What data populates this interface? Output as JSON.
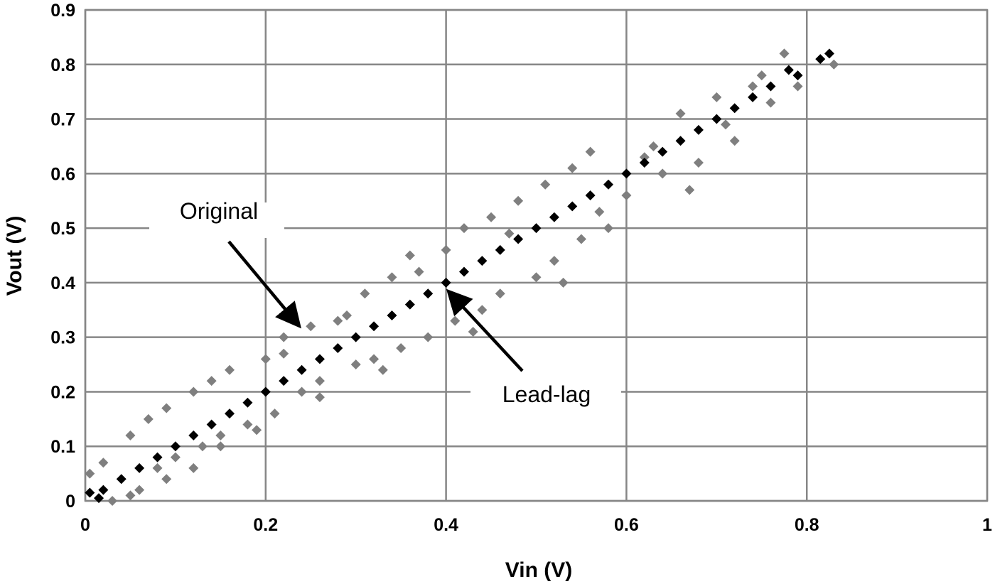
{
  "chart_data": {
    "type": "scatter",
    "title": "",
    "xlabel": "Vin (V)",
    "ylabel": "Vout (V)",
    "xlim": [
      0,
      1
    ],
    "ylim": [
      0,
      0.9
    ],
    "x_ticks": [
      0,
      0.2,
      0.4,
      0.6,
      0.8,
      1
    ],
    "x_tick_labels": [
      "0",
      "0.2",
      "0.4",
      "0.6",
      "0.8",
      "1"
    ],
    "y_ticks": [
      0,
      0.1,
      0.2,
      0.3,
      0.4,
      0.5,
      0.6,
      0.7,
      0.8,
      0.9
    ],
    "y_tick_labels": [
      "0",
      "0.1",
      "0.2",
      "0.3",
      "0.4",
      "0.5",
      "0.6",
      "0.7",
      "0.8",
      "0.9"
    ],
    "grid": true,
    "legend": "none",
    "marker": "diamond",
    "series": [
      {
        "name": "Original",
        "color": "#7f7f7f",
        "x": [
          0.005,
          0.02,
          0.03,
          0.05,
          0.06,
          0.07,
          0.08,
          0.09,
          0.1,
          0.12,
          0.13,
          0.14,
          0.15,
          0.16,
          0.18,
          0.2,
          0.21,
          0.22,
          0.24,
          0.25,
          0.26,
          0.28,
          0.3,
          0.31,
          0.32,
          0.34,
          0.35,
          0.36,
          0.38,
          0.4,
          0.41,
          0.42,
          0.44,
          0.45,
          0.46,
          0.48,
          0.5,
          0.51,
          0.52,
          0.54,
          0.55,
          0.56,
          0.58,
          0.6,
          0.62,
          0.64,
          0.66,
          0.68,
          0.7,
          0.72,
          0.74,
          0.76,
          0.775,
          0.79,
          0.83,
          0.05,
          0.09,
          0.12,
          0.15,
          0.19,
          0.22,
          0.26,
          0.29,
          0.33,
          0.37,
          0.43,
          0.47,
          0.53,
          0.57,
          0.63,
          0.67,
          0.71,
          0.75
        ],
        "y": [
          0.05,
          0.07,
          0.0,
          0.12,
          0.02,
          0.15,
          0.06,
          0.17,
          0.08,
          0.2,
          0.1,
          0.22,
          0.12,
          0.24,
          0.14,
          0.26,
          0.16,
          0.3,
          0.2,
          0.32,
          0.22,
          0.33,
          0.25,
          0.38,
          0.26,
          0.41,
          0.28,
          0.45,
          0.3,
          0.46,
          0.33,
          0.5,
          0.35,
          0.52,
          0.38,
          0.55,
          0.41,
          0.58,
          0.44,
          0.61,
          0.48,
          0.64,
          0.5,
          0.56,
          0.63,
          0.6,
          0.71,
          0.62,
          0.74,
          0.66,
          0.76,
          0.73,
          0.82,
          0.76,
          0.8,
          0.01,
          0.04,
          0.06,
          0.1,
          0.13,
          0.27,
          0.19,
          0.34,
          0.24,
          0.42,
          0.31,
          0.49,
          0.4,
          0.53,
          0.65,
          0.57,
          0.69,
          0.78
        ]
      },
      {
        "name": "Lead-lag",
        "color": "#000000",
        "x": [
          0.005,
          0.015,
          0.02,
          0.04,
          0.06,
          0.08,
          0.1,
          0.12,
          0.14,
          0.16,
          0.18,
          0.2,
          0.22,
          0.24,
          0.26,
          0.28,
          0.3,
          0.32,
          0.34,
          0.36,
          0.38,
          0.4,
          0.42,
          0.44,
          0.46,
          0.48,
          0.5,
          0.52,
          0.54,
          0.56,
          0.58,
          0.6,
          0.62,
          0.64,
          0.66,
          0.68,
          0.7,
          0.72,
          0.74,
          0.76,
          0.78,
          0.79,
          0.815,
          0.825
        ],
        "y": [
          0.015,
          0.005,
          0.02,
          0.04,
          0.06,
          0.08,
          0.1,
          0.12,
          0.14,
          0.16,
          0.18,
          0.2,
          0.22,
          0.24,
          0.26,
          0.28,
          0.3,
          0.32,
          0.34,
          0.36,
          0.38,
          0.4,
          0.42,
          0.44,
          0.46,
          0.48,
          0.5,
          0.52,
          0.54,
          0.56,
          0.58,
          0.6,
          0.62,
          0.64,
          0.66,
          0.68,
          0.7,
          0.72,
          0.74,
          0.76,
          0.79,
          0.78,
          0.81,
          0.82
        ]
      }
    ],
    "annotations": [
      {
        "text": "Original",
        "points_to": [
          0.235,
          0.325
        ]
      },
      {
        "text": "Lead-lag",
        "points_to": [
          0.405,
          0.38
        ]
      }
    ]
  }
}
